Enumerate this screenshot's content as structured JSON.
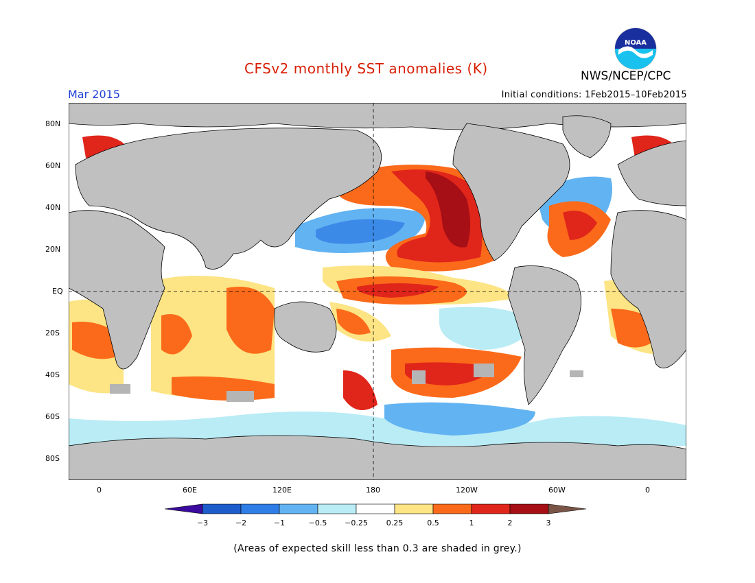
{
  "header": {
    "title": "CFSv2 monthly SST anomalies (K)",
    "month": "Mar 2015",
    "initial_conditions": "Initial conditions: 1Feb2015–10Feb2015",
    "agency": "NWS/NCEP/CPC",
    "logo_text": "NOAA"
  },
  "map": {
    "lat_labels": [
      "80N",
      "60N",
      "40N",
      "20N",
      "EQ",
      "20S",
      "40S",
      "60S",
      "80S"
    ],
    "lon_labels": [
      "0",
      "60E",
      "120E",
      "180",
      "120W",
      "60W",
      "0"
    ],
    "land_color": "#c0c0c0",
    "no_skill_color": "#b5b5b5",
    "colors": {
      "dark_red": "#a50f15",
      "red": "#e0251b",
      "orange": "#fb6a1a",
      "yellow": "#fde484",
      "white": "#ffffff",
      "light_blue": "#b9ecf5",
      "sky_blue": "#62b3f2",
      "blue": "#3c8ae8",
      "deep_blue": "#1f5fcf"
    }
  },
  "legend": {
    "labels": [
      "−3",
      "−2",
      "−1",
      "−0.5",
      "−0.25",
      "0.25",
      "0.5",
      "1",
      "2",
      "3"
    ],
    "colors": [
      "#3b0ba0",
      "#1c5ccb",
      "#2f7de6",
      "#62b3f2",
      "#b9ecf5",
      "#ffffff",
      "#fde484",
      "#fb6a1a",
      "#e0251b",
      "#a50f15",
      "#7a5547"
    ]
  },
  "footnote": "(Areas of expected skill less than 0.3 are shaded in grey.)"
}
